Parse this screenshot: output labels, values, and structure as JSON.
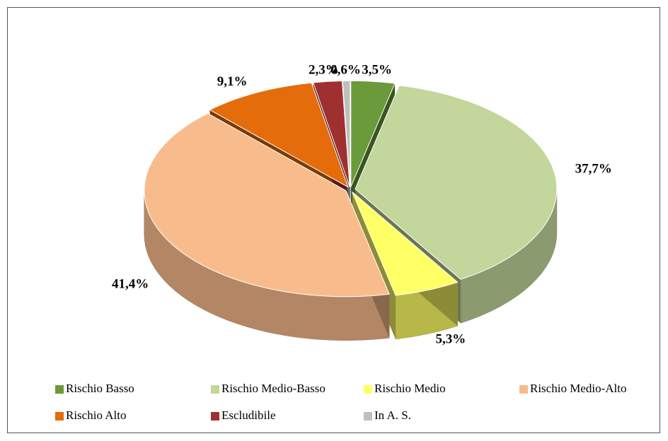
{
  "chart_data": {
    "type": "pie3d",
    "categories": [
      "Rischio Basso",
      "Rischio Medio-Basso",
      "Rischio Medio",
      "Rischio Medio-Alto",
      "Rischio Alto",
      "Escludibile",
      "In A. S."
    ],
    "values": [
      3.5,
      37.7,
      5.3,
      41.4,
      9.1,
      2.3,
      0.6
    ],
    "value_labels": [
      "3,5%",
      "37,7%",
      "5,3%",
      "41,4%",
      "9,1%",
      "2,3%",
      "0,6%"
    ],
    "colors": [
      "#6b9a3a",
      "#c3d69b",
      "#ffff66",
      "#f8bc8c",
      "#e46c0a",
      "#a0302f",
      "#bfbfbf"
    ]
  }
}
